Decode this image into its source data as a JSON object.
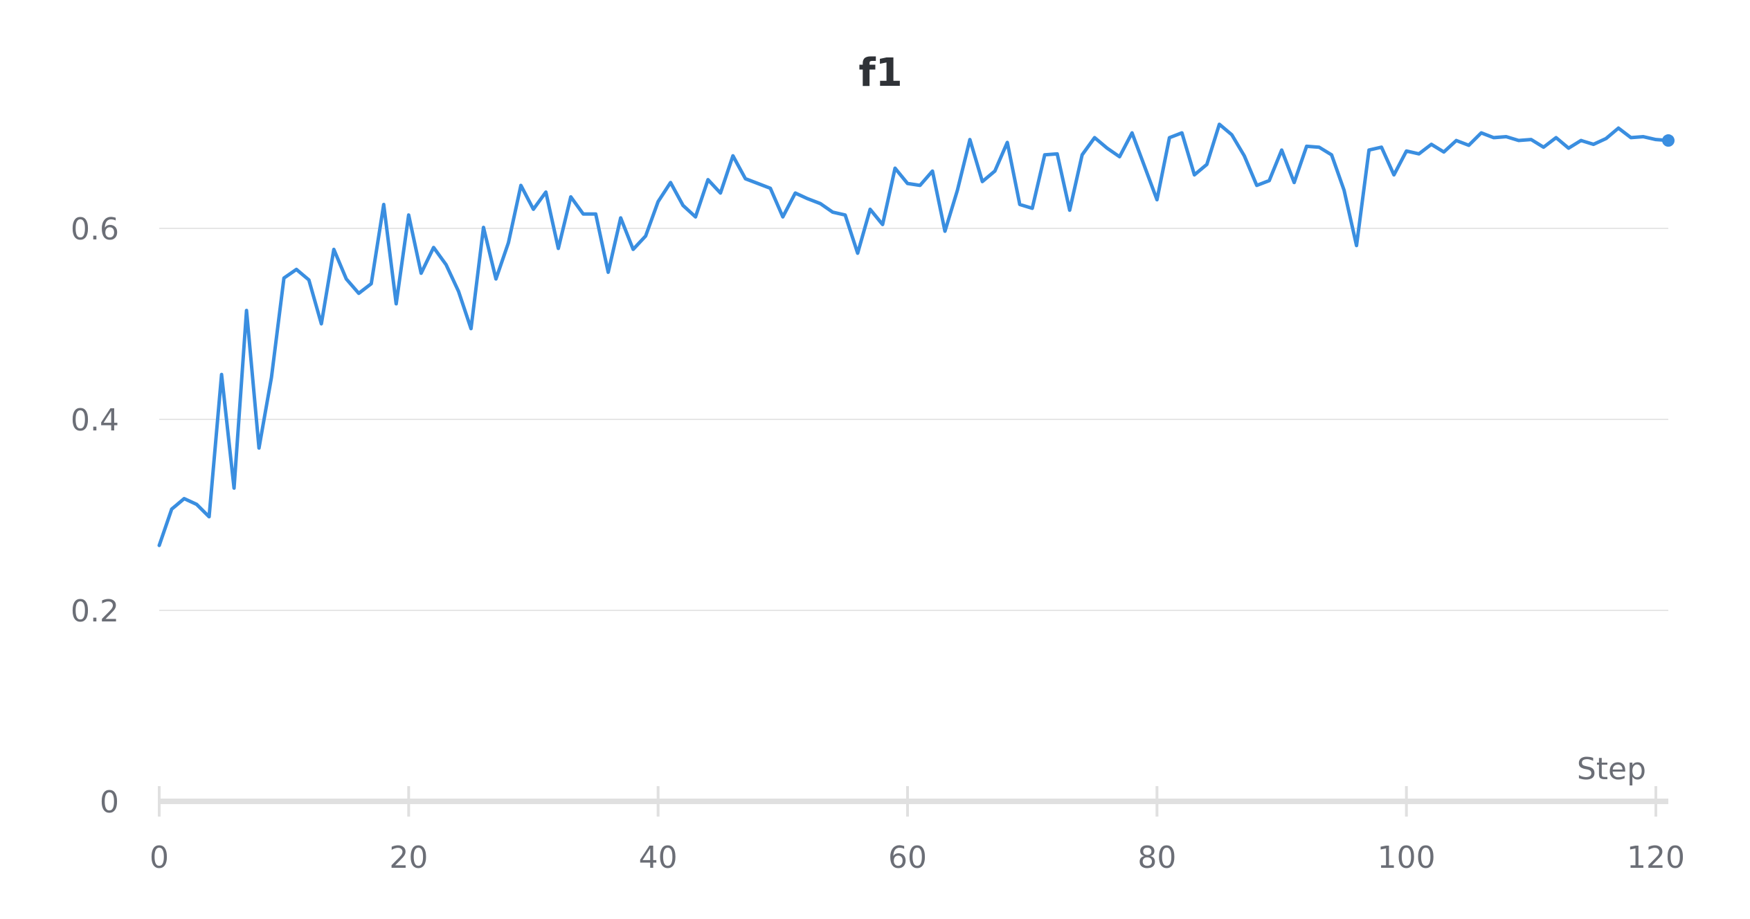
{
  "chart_data": {
    "type": "line",
    "title": "f1",
    "xlabel": "Step",
    "ylabel": "",
    "xlim": [
      0,
      121
    ],
    "ylim": [
      0,
      0.72
    ],
    "x_ticks": [
      0,
      20,
      40,
      60,
      80,
      100,
      120
    ],
    "x_tick_labels": [
      "0",
      "20",
      "40",
      "60",
      "80",
      "100",
      "120"
    ],
    "y_ticks": [
      0,
      0.2,
      0.4,
      0.6
    ],
    "y_tick_labels": [
      "0",
      "0.2",
      "0.4",
      "0.6"
    ],
    "grid": "horizontal",
    "colors": {
      "series": "#3a8ee0",
      "grid": "#e6e6e6",
      "axis": "#e0e0e0"
    },
    "series": [
      {
        "values": [
          0.268,
          0.306,
          0.317,
          0.311,
          0.298,
          0.447,
          0.328,
          0.514,
          0.37,
          0.444,
          0.548,
          0.557,
          0.546,
          0.5,
          0.578,
          0.547,
          0.532,
          0.542,
          0.625,
          0.521,
          0.614,
          0.553,
          0.58,
          0.562,
          0.534,
          0.495,
          0.601,
          0.547,
          0.585,
          0.645,
          0.62,
          0.638,
          0.579,
          0.633,
          0.615,
          0.615,
          0.554,
          0.611,
          0.578,
          0.592,
          0.628,
          0.648,
          0.624,
          0.612,
          0.651,
          0.637,
          0.676,
          0.652,
          0.647,
          0.642,
          0.612,
          0.637,
          0.631,
          0.626,
          0.617,
          0.614,
          0.574,
          0.62,
          0.604,
          0.663,
          0.647,
          0.645,
          0.66,
          0.597,
          0.64,
          0.693,
          0.649,
          0.66,
          0.69,
          0.625,
          0.621,
          0.677,
          0.678,
          0.619,
          0.677,
          0.695,
          0.684,
          0.675,
          0.7,
          0.665,
          0.63,
          0.695,
          0.7,
          0.656,
          0.667,
          0.709,
          0.698,
          0.676,
          0.645,
          0.65,
          0.682,
          0.648,
          0.686,
          0.685,
          0.677,
          0.64,
          0.582,
          0.682,
          0.685,
          0.656,
          0.681,
          0.678,
          0.688,
          0.68,
          0.692,
          0.687,
          0.7,
          0.695,
          0.696,
          0.692,
          0.693,
          0.685,
          0.695,
          0.684,
          0.692,
          0.688,
          0.694,
          0.705,
          0.695,
          0.696,
          0.693,
          0.692
        ]
      }
    ]
  }
}
